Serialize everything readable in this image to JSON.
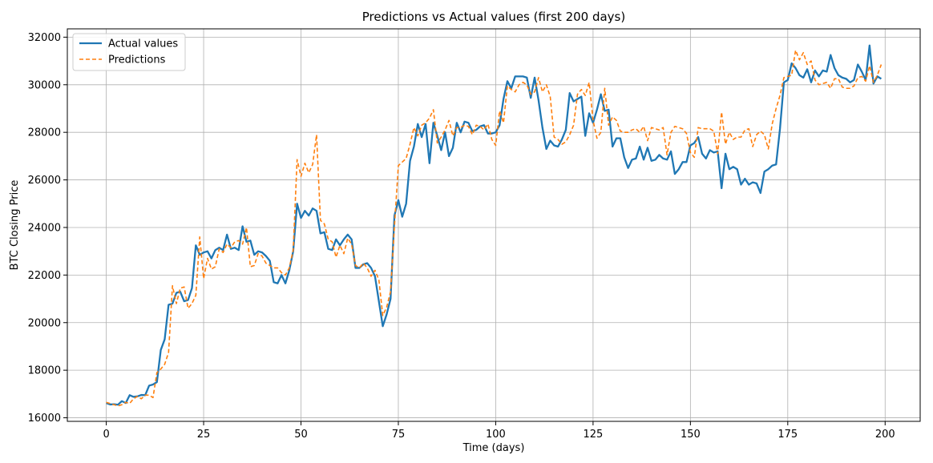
{
  "chart_data": {
    "type": "line",
    "title": "Predictions vs Actual values (first 200 days)",
    "xlabel": "Time (days)",
    "ylabel": "BTC Closing Price",
    "xlim": [
      -10,
      209
    ],
    "ylim": [
      15850,
      32350
    ],
    "x_ticks": [
      0,
      25,
      50,
      75,
      100,
      125,
      150,
      175,
      200
    ],
    "y_ticks": [
      16000,
      18000,
      20000,
      22000,
      24000,
      26000,
      28000,
      30000,
      32000
    ],
    "grid": true,
    "legend_position": "upper-left",
    "x": [
      0,
      1,
      2,
      3,
      4,
      5,
      6,
      7,
      8,
      9,
      10,
      11,
      12,
      13,
      14,
      15,
      16,
      17,
      18,
      19,
      20,
      21,
      22,
      23,
      24,
      25,
      26,
      27,
      28,
      29,
      30,
      31,
      32,
      33,
      34,
      35,
      36,
      37,
      38,
      39,
      40,
      41,
      42,
      43,
      44,
      45,
      46,
      47,
      48,
      49,
      50,
      51,
      52,
      53,
      54,
      55,
      56,
      57,
      58,
      59,
      60,
      61,
      62,
      63,
      64,
      65,
      66,
      67,
      68,
      69,
      70,
      71,
      72,
      73,
      74,
      75,
      76,
      77,
      78,
      79,
      80,
      81,
      82,
      83,
      84,
      85,
      86,
      87,
      88,
      89,
      90,
      91,
      92,
      93,
      94,
      95,
      96,
      97,
      98,
      99,
      100,
      101,
      102,
      103,
      104,
      105,
      106,
      107,
      108,
      109,
      110,
      111,
      112,
      113,
      114,
      115,
      116,
      117,
      118,
      119,
      120,
      121,
      122,
      123,
      124,
      125,
      126,
      127,
      128,
      129,
      130,
      131,
      132,
      133,
      134,
      135,
      136,
      137,
      138,
      139,
      140,
      141,
      142,
      143,
      144,
      145,
      146,
      147,
      148,
      149,
      150,
      151,
      152,
      153,
      154,
      155,
      156,
      157,
      158,
      159,
      160,
      161,
      162,
      163,
      164,
      165,
      166,
      167,
      168,
      169,
      170,
      171,
      172,
      173,
      174,
      175,
      176,
      177,
      178,
      179,
      180,
      181,
      182,
      183,
      184,
      185,
      186,
      187,
      188,
      189,
      190,
      191,
      192,
      193,
      194,
      195,
      196,
      197,
      198,
      199
    ],
    "series": [
      {
        "name": "Actual values",
        "color": "#1f77b4",
        "style": "solid",
        "values": [
          16620,
          16560,
          16570,
          16550,
          16700,
          16620,
          16950,
          16880,
          16900,
          16960,
          16950,
          17350,
          17400,
          17500,
          18850,
          19300,
          20750,
          20800,
          21250,
          21300,
          20900,
          20950,
          21450,
          23250,
          22850,
          22950,
          23000,
          22700,
          23050,
          23150,
          23050,
          23700,
          23100,
          23150,
          23050,
          24050,
          23400,
          23450,
          22850,
          23000,
          22950,
          22800,
          22600,
          21700,
          21650,
          22000,
          21650,
          22200,
          23000,
          25000,
          24400,
          24700,
          24500,
          24800,
          24700,
          23750,
          23800,
          23100,
          23050,
          23500,
          23250,
          23500,
          23700,
          23500,
          22300,
          22300,
          22450,
          22500,
          22300,
          21950,
          20900,
          19850,
          20350,
          21000,
          24500,
          25150,
          24450,
          25000,
          26800,
          27400,
          28350,
          27800,
          28350,
          26700,
          28400,
          27850,
          27250,
          28000,
          27000,
          27350,
          28400,
          28000,
          28450,
          28400,
          28050,
          28100,
          28250,
          28300,
          27950,
          27950,
          28000,
          28300,
          29400,
          30150,
          29850,
          30350,
          30350,
          30350,
          30300,
          29450,
          30300,
          29350,
          28200,
          27300,
          27650,
          27450,
          27400,
          27700,
          28100,
          29650,
          29300,
          29400,
          29500,
          27850,
          28800,
          28400,
          28950,
          29600,
          28900,
          28950,
          27400,
          27750,
          27750,
          26950,
          26500,
          26850,
          26900,
          27400,
          26850,
          27350,
          26800,
          26850,
          27050,
          26900,
          26850,
          27200,
          26250,
          26450,
          26750,
          26750,
          27450,
          27550,
          27800,
          27100,
          26900,
          27250,
          27150,
          27200,
          25650,
          27100,
          26450,
          26550,
          26450,
          25800,
          26050,
          25800,
          25900,
          25850,
          25450,
          26350,
          26450,
          26600,
          26650,
          28150,
          30100,
          30200,
          30900,
          30700,
          30400,
          30300,
          30650,
          30100,
          30600,
          30350,
          30600,
          30550,
          31250,
          30700,
          30400,
          30300,
          30250,
          30100,
          30200,
          30850,
          30550,
          30200,
          31650,
          30050,
          30350,
          30250
        ]
      },
      {
        "name": "Predictions",
        "color": "#ff7f0e",
        "style": "dashed",
        "values": [
          16650,
          16600,
          16550,
          16500,
          16550,
          16650,
          16600,
          16800,
          16900,
          16800,
          16950,
          16950,
          16850,
          17900,
          18050,
          18250,
          18750,
          21550,
          20800,
          21450,
          21500,
          20600,
          20800,
          21150,
          23600,
          21850,
          22700,
          22250,
          22350,
          23100,
          22950,
          23300,
          23150,
          23400,
          23450,
          23300,
          24000,
          22350,
          22400,
          22900,
          22800,
          22500,
          22400,
          22300,
          22300,
          22100,
          22000,
          22300,
          23050,
          26850,
          26150,
          26700,
          26300,
          26650,
          27900,
          24300,
          24150,
          23500,
          23400,
          22750,
          23250,
          22900,
          23550,
          23300,
          22400,
          22300,
          22500,
          22300,
          21950,
          22200,
          21800,
          20300,
          20650,
          21300,
          24050,
          26600,
          26750,
          26900,
          27500,
          28200,
          27850,
          28300,
          28400,
          28600,
          28950,
          27550,
          27800,
          28100,
          28500,
          27850,
          28200,
          28200,
          28300,
          28250,
          27900,
          28300,
          28250,
          28100,
          28350,
          27700,
          27450,
          28900,
          28400,
          29950,
          29800,
          29700,
          30000,
          30100,
          30000,
          29600,
          29700,
          30300,
          29700,
          30000,
          29500,
          27800,
          27700,
          27500,
          27600,
          27900,
          28300,
          29600,
          29800,
          29550,
          30100,
          28500,
          27750,
          28000,
          29850,
          28300,
          28650,
          28500,
          28050,
          28000,
          28000,
          28100,
          28150,
          28000,
          28250,
          27650,
          28200,
          28150,
          28100,
          28200,
          27050,
          28000,
          28250,
          28200,
          28150,
          27950,
          27150,
          26950,
          28200,
          28150,
          28150,
          28150,
          28050,
          27100,
          28850,
          27500,
          28000,
          27700,
          27800,
          27800,
          28100,
          28150,
          27400,
          27900,
          28050,
          27900,
          27300,
          28350,
          29000,
          29550,
          30300,
          30350,
          30400,
          31450,
          31050,
          31350,
          30850,
          31000,
          30200,
          30000,
          30050,
          30100,
          29850,
          30250,
          30250,
          29900,
          29850,
          29850,
          29950,
          30300,
          30350,
          30150,
          30800,
          30100,
          30400,
          30850
        ]
      }
    ]
  }
}
